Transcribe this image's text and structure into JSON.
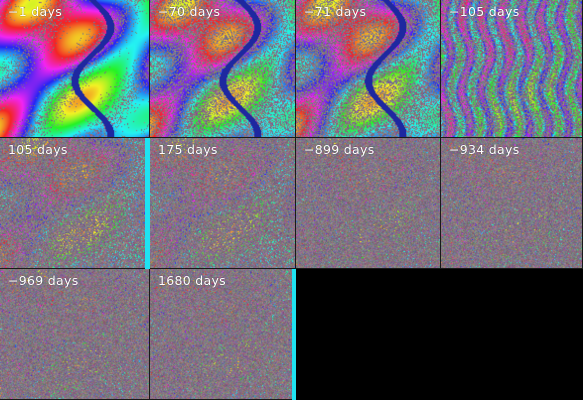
{
  "panels": [
    {
      "label": "−1 days"
    },
    {
      "label": "−70 days"
    },
    {
      "label": "−71 days"
    },
    {
      "label": "−105 days"
    },
    {
      "label": "105 days"
    },
    {
      "label": "175 days"
    },
    {
      "label": "−899 days"
    },
    {
      "label": "−934 days"
    },
    {
      "label": "−969 days"
    },
    {
      "label": "1680 days"
    }
  ],
  "colors": {
    "background": "#000000",
    "accent_bar": "#1fe3f2",
    "label_text": "#ffffff"
  }
}
